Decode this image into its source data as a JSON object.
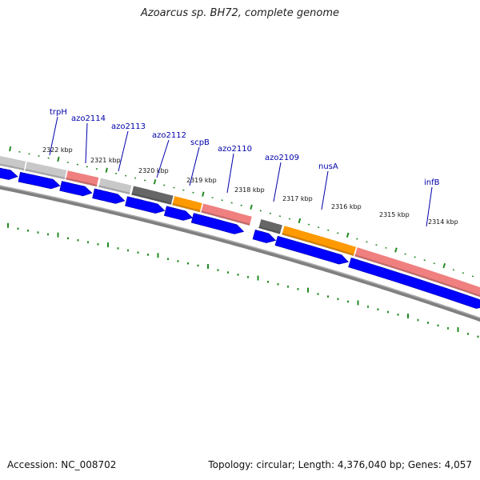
{
  "title": "Azoarcus sp. BH72, complete genome",
  "footer": {
    "accession": "Accession: NC_008702",
    "stats": "Topology: circular; Length: 4,376,040 bp; Genes: 4,057"
  },
  "colors": {
    "label": "#0000aa",
    "forward_cds": "#0000ff",
    "tick": "#228b22",
    "backbone": "#808080",
    "feature_light_gray": "#c8c8c8",
    "feature_dark_gray": "#666666",
    "feature_pink": "#f08080",
    "feature_orange": "#ff9900"
  },
  "scale_labels": [
    "2322 kbp",
    "2321 kbp",
    "2320 kbp",
    "2319 kbp",
    "2318 kbp",
    "2317 kbp",
    "2316 kbp",
    "2315 kbp",
    "2314 kbp"
  ],
  "gene_labels": [
    "trpH",
    "azo2114",
    "azo2113",
    "azo2112",
    "scpB",
    "azo2110",
    "azo2109",
    "nusA",
    "infB"
  ]
}
